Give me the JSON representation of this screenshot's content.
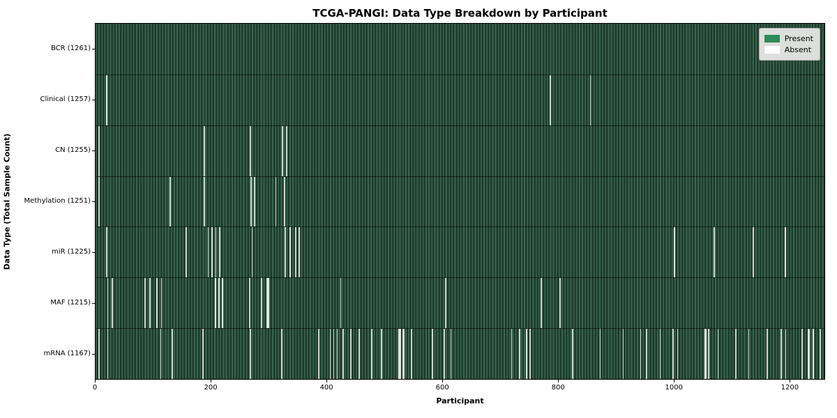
{
  "title": "TCGA-PANGI: Data Type Breakdown by Participant",
  "axes": {
    "xlabel": "Participant",
    "ylabel": "Data Type (Total Sample Count)",
    "x_ticks": [
      0,
      200,
      400,
      600,
      800,
      1000,
      1200
    ],
    "x_max": 1261
  },
  "legend": {
    "present_label": "Present",
    "absent_label": "Absent",
    "present_color": "#2e8b57",
    "absent_color": "#ffffff"
  },
  "colors": {
    "bar_light": "#3a6650",
    "bar_dark": "#1e3a2b",
    "absent_stripe": "#ccd5cd",
    "legend_bg": "#dcdfdc"
  },
  "chart_data": {
    "type": "heatmap",
    "subtype": "presence-absence matrix, one column per participant",
    "x_axis": {
      "label": "Participant",
      "min": 0,
      "max": 1261,
      "ticks": [
        0,
        200,
        400,
        600,
        800,
        1000,
        1200
      ]
    },
    "categories": [
      "BCR (1261)",
      "Clinical (1257)",
      "CN (1255)",
      "Methylation (1251)",
      "miR (1225)",
      "MAF (1215)",
      "mRNA (1167)"
    ],
    "totals": {
      "BCR": 1261,
      "Clinical": 1257,
      "CN": 1255,
      "Methylation": 1251,
      "miR": 1225,
      "MAF": 1215,
      "mRNA": 1167
    },
    "legend_position": "upper right",
    "rows": [
      {
        "label": "BCR (1261)",
        "name": "BCR",
        "total": 1261,
        "absent": []
      },
      {
        "label": "Clinical (1257)",
        "name": "Clinical",
        "total": 1257,
        "absent": [
          {
            "p": 18,
            "w": 3
          },
          {
            "p": 786,
            "w": 2
          },
          {
            "p": 855,
            "w": 2
          }
        ]
      },
      {
        "label": "CN (1255)",
        "name": "CN",
        "total": 1255,
        "absent": [
          {
            "p": 5,
            "w": 2
          },
          {
            "p": 187,
            "w": 2
          },
          {
            "p": 267,
            "w": 2
          },
          {
            "p": 322,
            "w": 2
          },
          {
            "p": 330,
            "w": 2
          }
        ]
      },
      {
        "label": "Methylation (1251)",
        "name": "Methylation",
        "total": 1251,
        "absent": [
          {
            "p": 5,
            "w": 2
          },
          {
            "p": 128,
            "w": 2
          },
          {
            "p": 187,
            "w": 2
          },
          {
            "p": 268,
            "w": 2
          },
          {
            "p": 274,
            "w": 2
          },
          {
            "p": 311,
            "w": 2
          },
          {
            "p": 326,
            "w": 2
          }
        ]
      },
      {
        "label": "miR (1225)",
        "name": "miR",
        "total": 1225,
        "absent": [
          {
            "p": 18,
            "w": 2
          },
          {
            "p": 156,
            "w": 2
          },
          {
            "p": 194,
            "w": 2
          },
          {
            "p": 200,
            "w": 3
          },
          {
            "p": 207,
            "w": 2
          },
          {
            "p": 214,
            "w": 2
          },
          {
            "p": 270,
            "w": 2
          },
          {
            "p": 327,
            "w": 2
          },
          {
            "p": 335,
            "w": 3
          },
          {
            "p": 345,
            "w": 2
          },
          {
            "p": 351,
            "w": 2
          },
          {
            "p": 1000,
            "w": 3
          },
          {
            "p": 1069,
            "w": 2
          },
          {
            "p": 1137,
            "w": 2
          },
          {
            "p": 1192,
            "w": 3
          }
        ]
      },
      {
        "label": "MAF (1215)",
        "name": "MAF",
        "total": 1215,
        "absent": [
          {
            "p": 20,
            "w": 2
          },
          {
            "p": 28,
            "w": 2
          },
          {
            "p": 85,
            "w": 2
          },
          {
            "p": 93,
            "w": 2
          },
          {
            "p": 105,
            "w": 3
          },
          {
            "p": 113,
            "w": 2
          },
          {
            "p": 206,
            "w": 3
          },
          {
            "p": 212,
            "w": 3
          },
          {
            "p": 218,
            "w": 3
          },
          {
            "p": 266,
            "w": 2
          },
          {
            "p": 286,
            "w": 2
          },
          {
            "p": 296,
            "w": 4
          },
          {
            "p": 423,
            "w": 2
          },
          {
            "p": 605,
            "w": 2
          },
          {
            "p": 770,
            "w": 2
          },
          {
            "p": 803,
            "w": 2
          }
        ]
      },
      {
        "label": "mRNA (1167)",
        "name": "mRNA",
        "total": 1167,
        "absent": [
          {
            "p": 5,
            "w": 2
          },
          {
            "p": 20,
            "w": 2
          },
          {
            "p": 112,
            "w": 2
          },
          {
            "p": 132,
            "w": 2
          },
          {
            "p": 185,
            "w": 2
          },
          {
            "p": 267,
            "w": 2
          },
          {
            "p": 321,
            "w": 2
          },
          {
            "p": 385,
            "w": 2
          },
          {
            "p": 405,
            "w": 2
          },
          {
            "p": 411,
            "w": 2
          },
          {
            "p": 417,
            "w": 2
          },
          {
            "p": 427,
            "w": 2
          },
          {
            "p": 441,
            "w": 2
          },
          {
            "p": 455,
            "w": 2
          },
          {
            "p": 477,
            "w": 2
          },
          {
            "p": 494,
            "w": 2
          },
          {
            "p": 524,
            "w": 4
          },
          {
            "p": 531,
            "w": 3
          },
          {
            "p": 546,
            "w": 2
          },
          {
            "p": 582,
            "w": 2
          },
          {
            "p": 602,
            "w": 2
          },
          {
            "p": 614,
            "w": 2
          },
          {
            "p": 719,
            "w": 2
          },
          {
            "p": 733,
            "w": 2
          },
          {
            "p": 744,
            "w": 3
          },
          {
            "p": 751,
            "w": 2
          },
          {
            "p": 824,
            "w": 2
          },
          {
            "p": 872,
            "w": 2
          },
          {
            "p": 912,
            "w": 2
          },
          {
            "p": 942,
            "w": 2
          },
          {
            "p": 952,
            "w": 2
          },
          {
            "p": 976,
            "w": 2
          },
          {
            "p": 998,
            "w": 2
          },
          {
            "p": 1006,
            "w": 2
          },
          {
            "p": 1054,
            "w": 3
          },
          {
            "p": 1060,
            "w": 2
          },
          {
            "p": 1076,
            "w": 2
          },
          {
            "p": 1107,
            "w": 2
          },
          {
            "p": 1129,
            "w": 2
          },
          {
            "p": 1161,
            "w": 2
          },
          {
            "p": 1185,
            "w": 2
          },
          {
            "p": 1193,
            "w": 2
          },
          {
            "p": 1221,
            "w": 2
          },
          {
            "p": 1232,
            "w": 4
          },
          {
            "p": 1240,
            "w": 3
          },
          {
            "p": 1253,
            "w": 2
          }
        ]
      }
    ]
  }
}
